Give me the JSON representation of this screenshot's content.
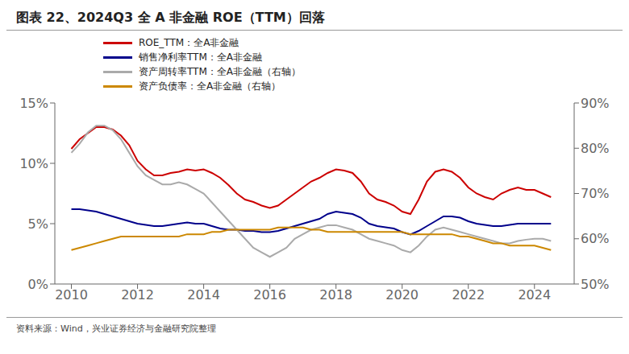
{
  "chart_data": {
    "type": "line",
    "title": "图表 22、2024Q3 全 A 非金融 ROE（TTM）回落",
    "source": "资料来源：Wind，兴业证券经济与金融研究院整理",
    "grid": false,
    "legend": "top",
    "x": [
      2010.0,
      2010.25,
      2010.5,
      2010.75,
      2011.0,
      2011.25,
      2011.5,
      2011.75,
      2012.0,
      2012.25,
      2012.5,
      2012.75,
      2013.0,
      2013.25,
      2013.5,
      2013.75,
      2014.0,
      2014.25,
      2014.5,
      2014.75,
      2015.0,
      2015.25,
      2015.5,
      2015.75,
      2016.0,
      2016.25,
      2016.5,
      2016.75,
      2017.0,
      2017.25,
      2017.5,
      2017.75,
      2018.0,
      2018.25,
      2018.5,
      2018.75,
      2019.0,
      2019.25,
      2019.5,
      2019.75,
      2020.0,
      2020.25,
      2020.5,
      2020.75,
      2021.0,
      2021.25,
      2021.5,
      2021.75,
      2022.0,
      2022.25,
      2022.5,
      2022.75,
      2023.0,
      2023.25,
      2023.5,
      2023.75,
      2024.0,
      2024.25,
      2024.5
    ],
    "xlim": [
      2009.5,
      2025.2
    ],
    "xticks": [
      2010,
      2012,
      2014,
      2016,
      2018,
      2020,
      2022,
      2024
    ],
    "ylim": [
      0,
      15
    ],
    "yticks": [
      {
        "value": 0,
        "label": "0%"
      },
      {
        "value": 5,
        "label": "5%"
      },
      {
        "value": 10,
        "label": "10%"
      },
      {
        "value": 15,
        "label": "15%"
      }
    ],
    "y2lim": [
      50,
      90
    ],
    "y2ticks": [
      {
        "value": 50,
        "label": "50%"
      },
      {
        "value": 60,
        "label": "60%"
      },
      {
        "value": 70,
        "label": "70%"
      },
      {
        "value": 80,
        "label": "80%"
      },
      {
        "value": 90,
        "label": "90%"
      }
    ],
    "series": [
      {
        "name": "ROE_TTM：全A非金融",
        "color": "#cc0000",
        "values": [
          11.2,
          12.0,
          12.5,
          13.0,
          13.0,
          12.8,
          12.3,
          11.5,
          10.2,
          9.5,
          9.0,
          9.0,
          9.2,
          9.3,
          9.5,
          9.4,
          9.5,
          9.2,
          8.8,
          8.2,
          7.5,
          7.0,
          6.8,
          6.5,
          6.3,
          6.5,
          7.0,
          7.5,
          8.0,
          8.5,
          8.8,
          9.2,
          9.5,
          9.4,
          9.2,
          8.5,
          7.5,
          7.0,
          6.8,
          6.5,
          6.0,
          5.8,
          7.0,
          8.5,
          9.3,
          9.5,
          9.3,
          8.8,
          8.0,
          7.5,
          7.2,
          7.0,
          7.5,
          7.8,
          8.0,
          7.8,
          7.8,
          7.5,
          7.2
        ]
      },
      {
        "name": "销售净利率TTM：全A非金融",
        "color": "#00008b",
        "values": [
          6.2,
          6.2,
          6.1,
          6.0,
          5.8,
          5.6,
          5.4,
          5.2,
          5.0,
          4.9,
          4.8,
          4.8,
          4.9,
          5.0,
          5.1,
          5.0,
          5.0,
          4.8,
          4.6,
          4.5,
          4.5,
          4.4,
          4.4,
          4.3,
          4.3,
          4.4,
          4.6,
          4.8,
          5.0,
          5.2,
          5.4,
          5.8,
          6.0,
          5.9,
          5.8,
          5.5,
          5.0,
          4.8,
          4.7,
          4.6,
          4.3,
          4.1,
          4.4,
          4.8,
          5.2,
          5.6,
          5.6,
          5.5,
          5.2,
          5.0,
          4.9,
          4.8,
          4.8,
          4.9,
          5.0,
          5.0,
          5.0,
          5.0,
          5.0
        ]
      },
      {
        "name": "资产周转率TTM：全A非金融（右轴）",
        "color": "#aaaaaa",
        "axis": "y2",
        "values": [
          79.0,
          81.0,
          83.5,
          85.0,
          85.0,
          84.0,
          82.0,
          79.0,
          76.0,
          74.0,
          73.0,
          72.0,
          72.0,
          72.5,
          72.0,
          71.0,
          70.0,
          68.0,
          66.0,
          64.0,
          62.0,
          60.0,
          58.0,
          57.0,
          56.0,
          57.0,
          58.0,
          60.0,
          61.0,
          62.0,
          62.5,
          63.0,
          63.0,
          62.5,
          62.0,
          61.0,
          60.0,
          59.5,
          59.0,
          58.5,
          57.5,
          57.0,
          58.5,
          60.5,
          62.0,
          62.5,
          62.0,
          61.5,
          61.0,
          60.5,
          60.0,
          59.5,
          59.0,
          59.0,
          59.5,
          59.8,
          60.0,
          60.0,
          59.5
        ]
      },
      {
        "name": "资产负债率：全A非金融（右轴）",
        "color": "#cc8800",
        "axis": "y2",
        "values": [
          57.5,
          58.0,
          58.5,
          59.0,
          59.5,
          60.0,
          60.5,
          60.5,
          60.5,
          60.5,
          60.5,
          60.5,
          60.5,
          60.5,
          61.0,
          61.0,
          61.0,
          61.5,
          61.5,
          62.0,
          62.0,
          62.0,
          62.0,
          62.0,
          62.0,
          62.5,
          62.5,
          62.5,
          62.5,
          62.0,
          62.0,
          61.5,
          61.5,
          61.5,
          61.5,
          61.5,
          61.5,
          61.5,
          61.5,
          61.5,
          61.5,
          61.0,
          61.0,
          61.0,
          61.0,
          61.0,
          61.0,
          60.5,
          60.5,
          60.0,
          59.5,
          59.0,
          59.0,
          58.5,
          58.5,
          58.5,
          58.5,
          58.0,
          57.5
        ]
      }
    ]
  }
}
